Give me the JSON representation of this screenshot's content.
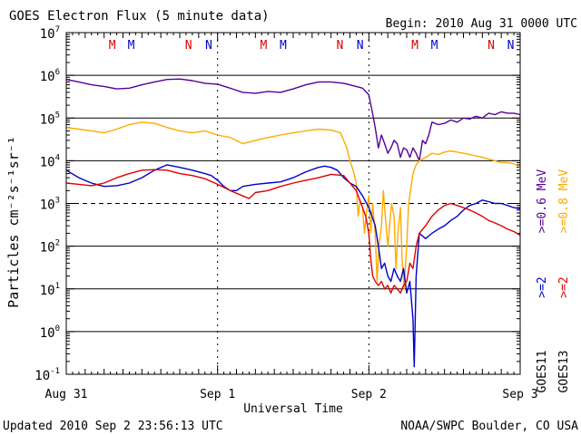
{
  "chart_data": {
    "type": "line",
    "title": "GOES Electron Flux (5 minute data)",
    "begin_label": "Begin: 2010 Aug 31 0000 UTC",
    "xlabel": "Universal Time",
    "ylabel": "Particles cm⁻²s⁻¹sr⁻¹",
    "y_scale": "log",
    "ylim": [
      0.1,
      10000000
    ],
    "y_tick_exponents": [
      "7",
      "6",
      "5",
      "4",
      "3",
      "2",
      "1",
      "0",
      "-1"
    ],
    "x_unit": "hours since 2010 Aug 31 0000 UTC",
    "xlim": [
      0,
      72
    ],
    "x_ticks": [
      {
        "x": 0,
        "label": "Aug 31"
      },
      {
        "x": 24,
        "label": "Sep 1"
      },
      {
        "x": 48,
        "label": "Sep 2"
      },
      {
        "x": 72,
        "label": "Sep 3"
      }
    ],
    "threshold_line": 1000,
    "solid_gridlines": [
      1000000,
      100000,
      10000,
      100,
      10,
      1
    ],
    "markers": [
      {
        "x": 7.3,
        "label": "M",
        "color": "#dd0000"
      },
      {
        "x": 10.3,
        "label": "M",
        "color": "#0000cc"
      },
      {
        "x": 19.4,
        "label": "N",
        "color": "#dd0000"
      },
      {
        "x": 22.6,
        "label": "N",
        "color": "#0000cc"
      },
      {
        "x": 31.3,
        "label": "M",
        "color": "#dd0000"
      },
      {
        "x": 34.4,
        "label": "M",
        "color": "#0000cc"
      },
      {
        "x": 43.4,
        "label": "N",
        "color": "#dd0000"
      },
      {
        "x": 46.6,
        "label": "N",
        "color": "#0000cc"
      },
      {
        "x": 55.3,
        "label": "M",
        "color": "#dd0000"
      },
      {
        "x": 58.4,
        "label": "M",
        "color": "#0000cc"
      },
      {
        "x": 67.4,
        "label": "N",
        "color": "#dd0000"
      },
      {
        "x": 70.5,
        "label": "N",
        "color": "#0000cc"
      }
    ],
    "series": [
      {
        "name": ">=0.6 MeV",
        "color": "#550099",
        "points": [
          [
            0,
            800000
          ],
          [
            2,
            700000
          ],
          [
            4,
            600000
          ],
          [
            6,
            550000
          ],
          [
            8,
            480000
          ],
          [
            10,
            500000
          ],
          [
            12,
            600000
          ],
          [
            14,
            700000
          ],
          [
            16,
            800000
          ],
          [
            18,
            820000
          ],
          [
            20,
            750000
          ],
          [
            22,
            650000
          ],
          [
            24,
            620000
          ],
          [
            26,
            500000
          ],
          [
            28,
            400000
          ],
          [
            30,
            380000
          ],
          [
            32,
            420000
          ],
          [
            34,
            400000
          ],
          [
            36,
            480000
          ],
          [
            38,
            600000
          ],
          [
            40,
            700000
          ],
          [
            42,
            700000
          ],
          [
            44,
            650000
          ],
          [
            46,
            550000
          ],
          [
            47,
            500000
          ],
          [
            48,
            350000
          ],
          [
            48.5,
            150000
          ],
          [
            49,
            60000
          ],
          [
            49.5,
            20000
          ],
          [
            50,
            40000
          ],
          [
            50.5,
            25000
          ],
          [
            51,
            15000
          ],
          [
            51.5,
            20000
          ],
          [
            52,
            30000
          ],
          [
            52.5,
            25000
          ],
          [
            53,
            12000
          ],
          [
            53.5,
            20000
          ],
          [
            54,
            18000
          ],
          [
            54.5,
            12000
          ],
          [
            55,
            20000
          ],
          [
            55.5,
            15000
          ],
          [
            56,
            10000
          ],
          [
            56.5,
            30000
          ],
          [
            57,
            25000
          ],
          [
            57.5,
            40000
          ],
          [
            58,
            80000
          ],
          [
            59,
            70000
          ],
          [
            60,
            75000
          ],
          [
            61,
            90000
          ],
          [
            62,
            80000
          ],
          [
            63,
            100000
          ],
          [
            64,
            95000
          ],
          [
            65,
            110000
          ],
          [
            66,
            100000
          ],
          [
            67,
            130000
          ],
          [
            68,
            120000
          ],
          [
            69,
            140000
          ],
          [
            70,
            130000
          ],
          [
            71,
            130000
          ],
          [
            72,
            120000
          ]
        ]
      },
      {
        "name": ">=0.8 MeV",
        "color": "#ffaa00",
        "points": [
          [
            0,
            60000
          ],
          [
            2,
            55000
          ],
          [
            4,
            50000
          ],
          [
            6,
            45000
          ],
          [
            8,
            55000
          ],
          [
            10,
            70000
          ],
          [
            12,
            80000
          ],
          [
            14,
            75000
          ],
          [
            16,
            60000
          ],
          [
            18,
            50000
          ],
          [
            20,
            45000
          ],
          [
            22,
            50000
          ],
          [
            24,
            40000
          ],
          [
            26,
            35000
          ],
          [
            28,
            25000
          ],
          [
            30,
            30000
          ],
          [
            32,
            35000
          ],
          [
            34,
            40000
          ],
          [
            36,
            45000
          ],
          [
            38,
            50000
          ],
          [
            40,
            55000
          ],
          [
            42,
            52000
          ],
          [
            43.5,
            45000
          ],
          [
            44,
            30000
          ],
          [
            44.5,
            20000
          ],
          [
            45,
            10000
          ],
          [
            45.5,
            6000
          ],
          [
            46,
            3000
          ],
          [
            46.3,
            500
          ],
          [
            46.6,
            1200
          ],
          [
            47,
            800
          ],
          [
            47.3,
            200
          ],
          [
            47.6,
            600
          ],
          [
            48,
            1500
          ],
          [
            48.3,
            200
          ],
          [
            48.6,
            1000
          ],
          [
            49,
            200
          ],
          [
            49.3,
            15
          ],
          [
            49.6,
            100
          ],
          [
            50,
            300
          ],
          [
            50.3,
            2000
          ],
          [
            50.6,
            500
          ],
          [
            51,
            100
          ],
          [
            51.3,
            300
          ],
          [
            51.6,
            1000
          ],
          [
            52,
            500
          ],
          [
            52.3,
            30
          ],
          [
            52.6,
            200
          ],
          [
            53,
            800
          ],
          [
            53.3,
            40
          ],
          [
            53.6,
            10
          ],
          [
            54,
            100
          ],
          [
            54.3,
            1000
          ],
          [
            54.6,
            2000
          ],
          [
            55,
            5000
          ],
          [
            55.5,
            8000
          ],
          [
            56,
            10000
          ],
          [
            57,
            12000
          ],
          [
            58,
            15000
          ],
          [
            59,
            14000
          ],
          [
            60,
            16000
          ],
          [
            61,
            17000
          ],
          [
            62,
            16000
          ],
          [
            63,
            15000
          ],
          [
            64,
            14000
          ],
          [
            65,
            13000
          ],
          [
            66,
            12000
          ],
          [
            67,
            11000
          ],
          [
            68,
            10000
          ],
          [
            69,
            9000
          ],
          [
            70,
            9000
          ],
          [
            71,
            8500
          ],
          [
            72,
            7000
          ]
        ]
      },
      {
        "name": ">=2 MeV GOES11",
        "color": "#0000cc",
        "points": [
          [
            0,
            6000
          ],
          [
            2,
            4000
          ],
          [
            4,
            3000
          ],
          [
            6,
            2500
          ],
          [
            8,
            2600
          ],
          [
            10,
            3000
          ],
          [
            12,
            4000
          ],
          [
            14,
            6000
          ],
          [
            16,
            8000
          ],
          [
            18,
            7000
          ],
          [
            20,
            6000
          ],
          [
            22,
            5000
          ],
          [
            23,
            4500
          ],
          [
            24,
            3500
          ],
          [
            25,
            2500
          ],
          [
            26,
            2000
          ],
          [
            27,
            2000
          ],
          [
            28,
            2500
          ],
          [
            30,
            2800
          ],
          [
            32,
            3000
          ],
          [
            34,
            3200
          ],
          [
            36,
            4000
          ],
          [
            38,
            5500
          ],
          [
            40,
            7000
          ],
          [
            41,
            7500
          ],
          [
            42,
            7000
          ],
          [
            43,
            6000
          ],
          [
            44,
            4000
          ],
          [
            45,
            3000
          ],
          [
            46,
            2500
          ],
          [
            47,
            1500
          ],
          [
            48,
            800
          ],
          [
            48.5,
            500
          ],
          [
            49,
            300
          ],
          [
            49.5,
            100
          ],
          [
            50,
            30
          ],
          [
            50.5,
            40
          ],
          [
            51,
            20
          ],
          [
            51.5,
            15
          ],
          [
            52,
            30
          ],
          [
            52.5,
            20
          ],
          [
            53,
            15
          ],
          [
            53.5,
            30
          ],
          [
            54,
            8
          ],
          [
            54.5,
            15
          ],
          [
            55,
            2
          ],
          [
            55.2,
            0.15
          ],
          [
            55.5,
            20
          ],
          [
            56,
            200
          ],
          [
            57,
            150
          ],
          [
            58,
            200
          ],
          [
            59,
            250
          ],
          [
            60,
            300
          ],
          [
            61,
            400
          ],
          [
            62,
            500
          ],
          [
            63,
            700
          ],
          [
            64,
            900
          ],
          [
            65,
            1000
          ],
          [
            66,
            1200
          ],
          [
            67,
            1100
          ],
          [
            68,
            1000
          ],
          [
            69,
            1000
          ],
          [
            70,
            900
          ],
          [
            71,
            800
          ],
          [
            72,
            750
          ]
        ]
      },
      {
        "name": ">=2 MeV GOES13",
        "color": "#dd0000",
        "points": [
          [
            0,
            3000
          ],
          [
            2,
            2800
          ],
          [
            4,
            2600
          ],
          [
            6,
            3000
          ],
          [
            8,
            4000
          ],
          [
            10,
            5000
          ],
          [
            12,
            6000
          ],
          [
            14,
            6200
          ],
          [
            16,
            6000
          ],
          [
            18,
            5000
          ],
          [
            20,
            4500
          ],
          [
            22,
            3800
          ],
          [
            24,
            2800
          ],
          [
            26,
            2000
          ],
          [
            28,
            1500
          ],
          [
            29,
            1300
          ],
          [
            30,
            1800
          ],
          [
            32,
            2000
          ],
          [
            34,
            2500
          ],
          [
            36,
            3000
          ],
          [
            38,
            3500
          ],
          [
            40,
            4000
          ],
          [
            42,
            4800
          ],
          [
            44,
            4500
          ],
          [
            45,
            3000
          ],
          [
            46,
            2000
          ],
          [
            47,
            800
          ],
          [
            47.5,
            500
          ],
          [
            48,
            200
          ],
          [
            48.3,
            50
          ],
          [
            48.6,
            20
          ],
          [
            49,
            15
          ],
          [
            49.5,
            12
          ],
          [
            50,
            15
          ],
          [
            50.5,
            10
          ],
          [
            51,
            12
          ],
          [
            51.5,
            8
          ],
          [
            52,
            12
          ],
          [
            52.5,
            10
          ],
          [
            53,
            8
          ],
          [
            53.5,
            12
          ],
          [
            54,
            15
          ],
          [
            54.5,
            40
          ],
          [
            55,
            30
          ],
          [
            55.5,
            100
          ],
          [
            56,
            200
          ],
          [
            57,
            300
          ],
          [
            58,
            500
          ],
          [
            59,
            700
          ],
          [
            60,
            900
          ],
          [
            61,
            1000
          ],
          [
            62,
            900
          ],
          [
            63,
            800
          ],
          [
            64,
            700
          ],
          [
            65,
            600
          ],
          [
            66,
            500
          ],
          [
            67,
            400
          ],
          [
            68,
            350
          ],
          [
            69,
            300
          ],
          [
            70,
            250
          ],
          [
            71,
            220
          ],
          [
            72,
            180
          ]
        ]
      }
    ],
    "right_labels": [
      {
        "text": ">=0.6 MeV",
        "color": "#550099"
      },
      {
        "text": ">=0.8 MeV",
        "color": "#ffaa00"
      },
      {
        "text": ">=2",
        "color": "#0000cc"
      },
      {
        "text": ">=2",
        "color": "#dd0000"
      },
      {
        "text": "GOES11",
        "color": "#000000"
      },
      {
        "text": "GOES13",
        "color": "#000000"
      }
    ]
  },
  "footer": {
    "updated": "Updated 2010 Sep  2 23:56:13 UTC",
    "credit": "NOAA/SWPC Boulder, CO USA"
  }
}
